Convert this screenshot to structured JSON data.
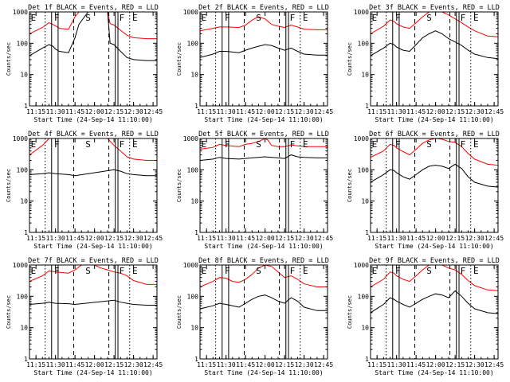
{
  "figure": {
    "xlabel": "Start Time (24-Sep-14 11:10:00)",
    "ylabel": "Counts/sec",
    "xticks": [
      "11:15",
      "11:30",
      "11:45",
      "12:00",
      "12:15",
      "12:30",
      "12:45"
    ],
    "yticks": [
      "1",
      "10",
      "100",
      "1000"
    ],
    "event_letters": [
      "E",
      "F",
      "S",
      "F",
      "E"
    ],
    "colors": {
      "events": "#000000",
      "lld": "#ff0000"
    }
  },
  "chart_data": [
    {
      "type": "line",
      "title": "Det 1f BLACK = Events, RED = LLD",
      "xlim": [
        "11:10",
        "12:48"
      ],
      "ylim": [
        1,
        1000
      ],
      "yscale": "log",
      "series": [
        {
          "name": "Events",
          "x": [
            "11:10",
            "11:20",
            "11:25",
            "11:28",
            "11:30",
            "11:33",
            "11:40",
            "11:45",
            "11:48",
            "11:55",
            "12:00",
            "12:05",
            "12:10",
            "12:12",
            "12:15",
            "12:20",
            "12:25",
            "12:30",
            "12:40",
            "12:48"
          ],
          "y": [
            40,
            70,
            90,
            80,
            65,
            55,
            50,
            150,
            400,
            1000,
            1000,
            1000,
            1000,
            100,
            90,
            55,
            35,
            30,
            28,
            28
          ]
        },
        {
          "name": "LLD",
          "x": [
            "11:10",
            "11:20",
            "11:25",
            "11:28",
            "11:30",
            "11:33",
            "11:40",
            "11:45",
            "11:48",
            "11:55",
            "12:00",
            "12:05",
            "12:10",
            "12:12",
            "12:15",
            "12:20",
            "12:25",
            "12:30",
            "12:40",
            "12:48"
          ],
          "y": [
            200,
            320,
            450,
            400,
            360,
            300,
            280,
            700,
            1000,
            1000,
            1000,
            1000,
            1000,
            420,
            380,
            260,
            180,
            150,
            140,
            140
          ]
        }
      ]
    },
    {
      "type": "line",
      "title": "Det 2f BLACK = Events, RED = LLD",
      "xlim": [
        "11:10",
        "12:48"
      ],
      "ylim": [
        1,
        1000
      ],
      "yscale": "log",
      "series": [
        {
          "name": "Events",
          "x": [
            "11:10",
            "11:20",
            "11:25",
            "11:30",
            "11:40",
            "11:45",
            "11:50",
            "11:55",
            "12:00",
            "12:05",
            "12:10",
            "12:15",
            "12:20",
            "12:25",
            "12:30",
            "12:40",
            "12:48"
          ],
          "y": [
            35,
            45,
            55,
            55,
            50,
            60,
            70,
            80,
            90,
            85,
            70,
            60,
            70,
            55,
            45,
            42,
            42
          ]
        },
        {
          "name": "LLD",
          "x": [
            "11:10",
            "11:20",
            "11:25",
            "11:30",
            "11:40",
            "11:45",
            "11:50",
            "11:55",
            "12:00",
            "12:05",
            "12:10",
            "12:15",
            "12:20",
            "12:25",
            "12:30",
            "12:40",
            "12:48"
          ],
          "y": [
            250,
            300,
            330,
            330,
            320,
            380,
            550,
            700,
            600,
            400,
            350,
            320,
            380,
            330,
            280,
            270,
            270
          ]
        }
      ]
    },
    {
      "type": "line",
      "title": "Det 3f BLACK = Events, RED = LLD",
      "xlim": [
        "11:10",
        "12:48"
      ],
      "ylim": [
        1,
        1000
      ],
      "yscale": "log",
      "series": [
        {
          "name": "Events",
          "x": [
            "11:10",
            "11:20",
            "11:25",
            "11:28",
            "11:30",
            "11:35",
            "11:40",
            "11:45",
            "11:50",
            "11:55",
            "12:00",
            "12:05",
            "12:10",
            "12:15",
            "12:20",
            "12:25",
            "12:30",
            "12:40",
            "12:48"
          ],
          "y": [
            40,
            70,
            100,
            90,
            75,
            60,
            55,
            90,
            150,
            200,
            250,
            200,
            140,
            110,
            85,
            60,
            45,
            35,
            32
          ]
        },
        {
          "name": "LLD",
          "x": [
            "11:10",
            "11:20",
            "11:25",
            "11:28",
            "11:30",
            "11:35",
            "11:40",
            "11:45",
            "11:50",
            "11:55",
            "12:00",
            "12:05",
            "12:10",
            "12:15",
            "12:20",
            "12:25",
            "12:30",
            "12:40",
            "12:48"
          ],
          "y": [
            200,
            350,
            550,
            500,
            420,
            330,
            300,
            450,
            700,
            1000,
            1000,
            1000,
            800,
            600,
            450,
            330,
            250,
            170,
            160
          ]
        }
      ]
    },
    {
      "type": "line",
      "title": "Det 4f BLACK = Events, RED = LLD",
      "xlim": [
        "11:10",
        "12:48"
      ],
      "ylim": [
        1,
        1000
      ],
      "yscale": "log",
      "series": [
        {
          "name": "Events",
          "x": [
            "11:10",
            "11:20",
            "11:25",
            "11:30",
            "11:40",
            "11:45",
            "12:15",
            "12:20",
            "12:25",
            "12:30",
            "12:40",
            "12:48"
          ],
          "y": [
            70,
            75,
            80,
            75,
            70,
            65,
            100,
            90,
            75,
            70,
            65,
            65
          ]
        },
        {
          "name": "LLD",
          "x": [
            "11:10",
            "11:20",
            "11:25",
            "11:30",
            "11:40",
            "11:45",
            "11:50",
            "12:10",
            "12:15",
            "12:20",
            "12:25",
            "12:30",
            "12:40",
            "12:48"
          ],
          "y": [
            300,
            600,
            1000,
            1000,
            1000,
            1000,
            1000,
            1000,
            600,
            400,
            260,
            220,
            200,
            200
          ]
        }
      ]
    },
    {
      "type": "line",
      "title": "Det 5f BLACK = Events, RED = LLD",
      "xlim": [
        "11:10",
        "12:48"
      ],
      "ylim": [
        1,
        1000
      ],
      "yscale": "log",
      "series": [
        {
          "name": "Events",
          "x": [
            "11:10",
            "11:20",
            "11:25",
            "11:30",
            "11:40",
            "11:45",
            "11:50",
            "11:55",
            "12:00",
            "12:05",
            "12:10",
            "12:15",
            "12:20",
            "12:25",
            "12:30",
            "12:40",
            "12:48"
          ],
          "y": [
            200,
            220,
            250,
            230,
            220,
            230,
            240,
            250,
            260,
            250,
            240,
            230,
            300,
            260,
            250,
            240,
            240
          ]
        },
        {
          "name": "LLD",
          "x": [
            "11:10",
            "11:20",
            "11:25",
            "11:30",
            "11:40",
            "11:45",
            "11:50",
            "11:55",
            "12:00",
            "12:02",
            "12:05",
            "12:10",
            "12:15",
            "12:20",
            "12:25",
            "12:30",
            "12:40",
            "12:48"
          ],
          "y": [
            450,
            520,
            650,
            600,
            550,
            650,
            700,
            800,
            1000,
            900,
            600,
            550,
            550,
            620,
            580,
            550,
            550,
            550
          ]
        }
      ]
    },
    {
      "type": "line",
      "title": "Det 6f BLACK = Events, RED = LLD",
      "xlim": [
        "11:10",
        "12:48"
      ],
      "ylim": [
        1,
        1000
      ],
      "yscale": "log",
      "series": [
        {
          "name": "Events",
          "x": [
            "11:10",
            "11:20",
            "11:25",
            "11:28",
            "11:30",
            "11:35",
            "11:40",
            "11:45",
            "11:50",
            "11:55",
            "12:00",
            "12:05",
            "12:10",
            "12:15",
            "12:20",
            "12:25",
            "12:30",
            "12:40",
            "12:48"
          ],
          "y": [
            40,
            70,
            100,
            95,
            80,
            60,
            50,
            70,
            100,
            130,
            140,
            130,
            110,
            150,
            110,
            60,
            40,
            30,
            28
          ]
        },
        {
          "name": "LLD",
          "x": [
            "11:10",
            "11:20",
            "11:25",
            "11:28",
            "11:30",
            "11:35",
            "11:40",
            "11:45",
            "11:50",
            "11:55",
            "12:00",
            "12:05",
            "12:10",
            "12:15",
            "12:20",
            "12:25",
            "12:30",
            "12:40",
            "12:48"
          ],
          "y": [
            250,
            400,
            650,
            600,
            500,
            380,
            300,
            450,
            700,
            900,
            1000,
            950,
            800,
            750,
            550,
            330,
            220,
            150,
            140
          ]
        }
      ]
    },
    {
      "type": "line",
      "title": "Det 7f BLACK = Events, RED = LLD",
      "xlim": [
        "11:10",
        "12:48"
      ],
      "ylim": [
        1,
        1000
      ],
      "yscale": "log",
      "series": [
        {
          "name": "Events",
          "x": [
            "11:10",
            "11:20",
            "11:25",
            "11:30",
            "11:40",
            "11:45",
            "12:15",
            "12:20",
            "12:25",
            "12:30",
            "12:40",
            "12:48"
          ],
          "y": [
            55,
            60,
            65,
            60,
            58,
            55,
            75,
            65,
            60,
            55,
            52,
            52
          ]
        },
        {
          "name": "LLD",
          "x": [
            "11:10",
            "11:20",
            "11:25",
            "11:30",
            "11:40",
            "11:45",
            "11:50",
            "12:00",
            "12:05",
            "12:10",
            "12:15",
            "12:20",
            "12:25",
            "12:30",
            "12:40",
            "12:48"
          ],
          "y": [
            300,
            450,
            650,
            600,
            550,
            700,
            1000,
            1000,
            800,
            700,
            600,
            550,
            450,
            320,
            240,
            240
          ]
        }
      ]
    },
    {
      "type": "line",
      "title": "Det 8f BLACK = Events, RED = LLD",
      "xlim": [
        "11:10",
        "12:48"
      ],
      "ylim": [
        1,
        1000
      ],
      "yscale": "log",
      "series": [
        {
          "name": "Events",
          "x": [
            "11:10",
            "11:20",
            "11:25",
            "11:30",
            "11:35",
            "11:40",
            "11:45",
            "11:50",
            "11:55",
            "12:00",
            "12:05",
            "12:10",
            "12:15",
            "12:20",
            "12:25",
            "12:30",
            "12:40",
            "12:48"
          ],
          "y": [
            40,
            50,
            60,
            55,
            50,
            45,
            60,
            80,
            100,
            110,
            90,
            70,
            60,
            90,
            70,
            45,
            35,
            35
          ]
        },
        {
          "name": "LLD",
          "x": [
            "11:10",
            "11:20",
            "11:25",
            "11:30",
            "11:35",
            "11:40",
            "11:45",
            "11:50",
            "11:55",
            "12:00",
            "12:05",
            "12:10",
            "12:15",
            "12:20",
            "12:25",
            "12:30",
            "12:40",
            "12:48"
          ],
          "y": [
            200,
            300,
            400,
            380,
            300,
            280,
            350,
            500,
            800,
            1000,
            900,
            600,
            400,
            450,
            350,
            250,
            200,
            200
          ]
        }
      ]
    },
    {
      "type": "line",
      "title": "Det 9f BLACK = Events, RED = LLD",
      "xlim": [
        "11:10",
        "12:48"
      ],
      "ylim": [
        1,
        1000
      ],
      "yscale": "log",
      "series": [
        {
          "name": "Events",
          "x": [
            "11:10",
            "11:20",
            "11:25",
            "11:28",
            "11:30",
            "11:35",
            "11:40",
            "11:45",
            "11:50",
            "11:55",
            "12:00",
            "12:05",
            "12:10",
            "12:15",
            "12:20",
            "12:25",
            "12:30",
            "12:40",
            "12:48"
          ],
          "y": [
            30,
            55,
            90,
            80,
            70,
            55,
            45,
            60,
            80,
            100,
            120,
            110,
            90,
            150,
            100,
            60,
            40,
            30,
            28
          ]
        },
        {
          "name": "LLD",
          "x": [
            "11:10",
            "11:20",
            "11:25",
            "11:28",
            "11:30",
            "11:35",
            "11:40",
            "11:45",
            "11:50",
            "11:55",
            "12:00",
            "12:05",
            "12:10",
            "12:15",
            "12:20",
            "12:25",
            "12:30",
            "12:40",
            "12:48"
          ],
          "y": [
            200,
            350,
            600,
            550,
            450,
            350,
            300,
            450,
            700,
            1000,
            1000,
            1000,
            800,
            700,
            500,
            320,
            220,
            160,
            150
          ]
        }
      ]
    }
  ]
}
